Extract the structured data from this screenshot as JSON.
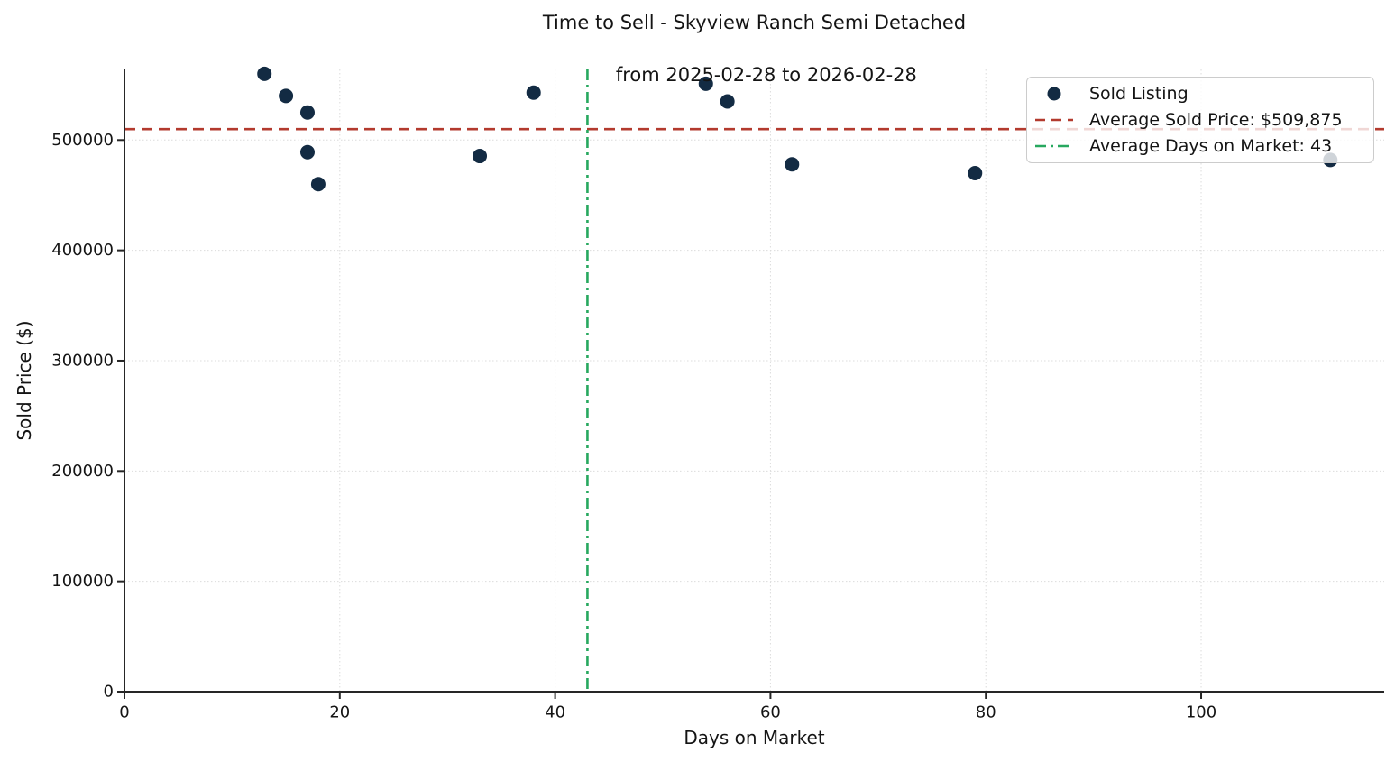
{
  "figure": {
    "background": "#FFFFFF"
  },
  "chart_data": {
    "type": "scatter",
    "title": "Time to Sell - Skyview Ranch Semi Detached\nfrom 2025-02-28 to 2026-02-28",
    "title_lines": [
      "Time to Sell - Skyview Ranch Semi Detached",
      "from 2025-02-28 to 2026-02-28"
    ],
    "xlabel": "Days on Market",
    "ylabel": "Sold Price ($)",
    "xlim": [
      0,
      117
    ],
    "ylim": [
      0,
      564000
    ],
    "x_ticks": [
      0,
      20,
      40,
      60,
      80,
      100
    ],
    "y_ticks": [
      0,
      100000,
      200000,
      300000,
      400000,
      500000
    ],
    "grid": true,
    "grid_style": "dotted",
    "legend_position": "upper right",
    "series": [
      {
        "name": "Sold Listing",
        "marker": "circle",
        "color": "#132B43",
        "points": [
          [
            13,
            560000
          ],
          [
            15,
            540000
          ],
          [
            17,
            525000
          ],
          [
            17,
            489000
          ],
          [
            18,
            460000
          ],
          [
            33,
            485500
          ],
          [
            38,
            543000
          ],
          [
            54,
            551000
          ],
          [
            56,
            535000
          ],
          [
            62,
            478000
          ],
          [
            79,
            470000
          ],
          [
            112,
            482000
          ]
        ]
      }
    ],
    "avg_lines": [
      {
        "name": "average-sold-price",
        "orientation": "horizontal",
        "value": 509875,
        "color": "#B33A2E",
        "dash": "12 7"
      },
      {
        "name": "average-days-on-market",
        "orientation": "vertical",
        "value": 43,
        "color": "#27A85F",
        "dash": "12 5 3 5"
      }
    ],
    "legend_items": [
      {
        "type": "point",
        "label": "Sold Listing"
      },
      {
        "type": "dashed-line",
        "label": "Average Sold Price: $509,875"
      },
      {
        "type": "dashdot-line",
        "label": "Average Days on Market: 43"
      }
    ],
    "colors": {
      "point": "#132B43",
      "avg_price_line": "#B33A2E",
      "avg_days_line": "#27A85F",
      "grid": "#DCDCDC",
      "axis": "#262626",
      "text": "#141414"
    }
  }
}
